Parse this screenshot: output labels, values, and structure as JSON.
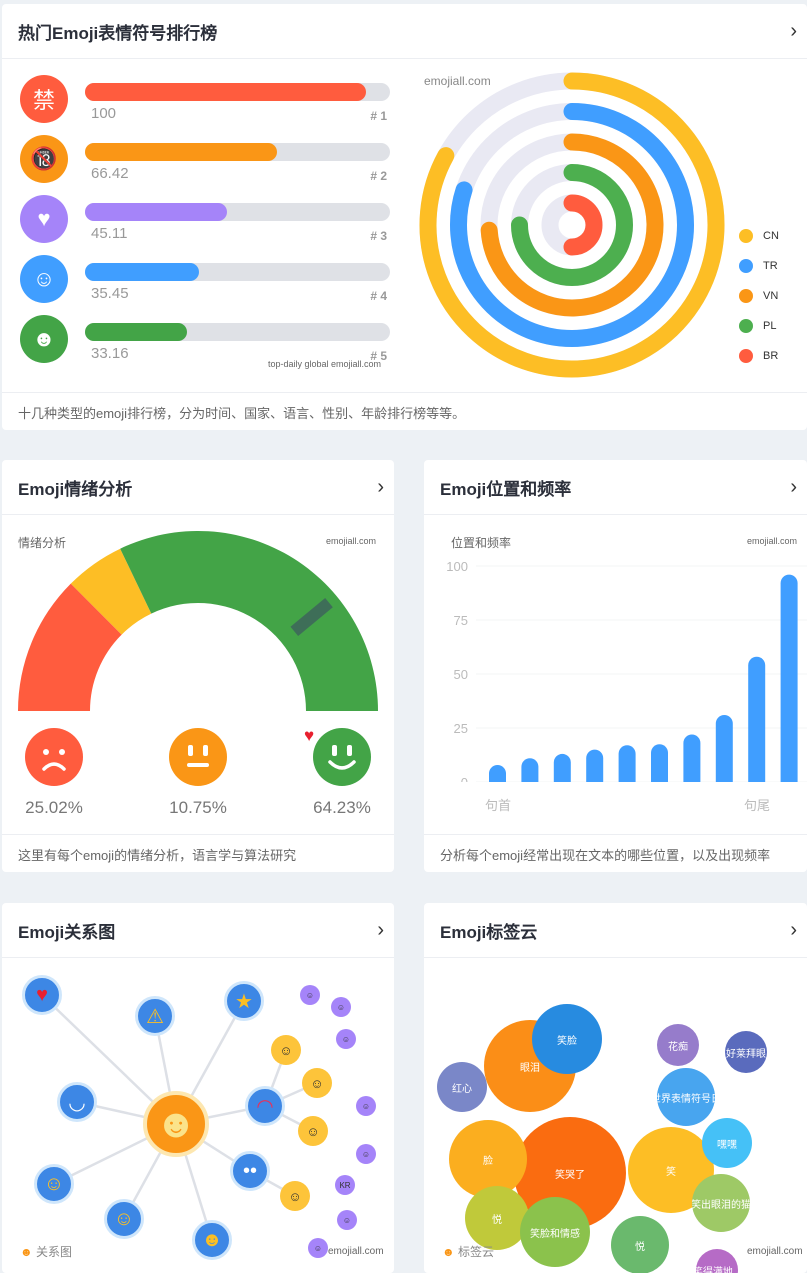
{
  "top": {
    "title": "热门Emoji表情符号排行榜",
    "watermark": "emojiall.com",
    "bar_source": "top-daily global emojiall.com",
    "ranks": [
      {
        "icon": "prohibited-ideograph-icon",
        "glyph": "禁",
        "value": "100",
        "frac": 0.92,
        "rank": "# 1",
        "color": "#ff5c3e",
        "bg": "#ff5c3e"
      },
      {
        "icon": "no-one-under-18-icon",
        "glyph": "🔞",
        "value": "66.42",
        "frac": 0.63,
        "rank": "# 2",
        "color": "#fa9616",
        "bg": "#fa9616"
      },
      {
        "icon": "pink-heart-icon",
        "glyph": "♥",
        "value": "45.11",
        "frac": 0.465,
        "rank": "# 3",
        "color": "#a584f9",
        "bg": "#a584f9"
      },
      {
        "icon": "pleading-face-icon",
        "glyph": "☺",
        "value": "35.45",
        "frac": 0.375,
        "rank": "# 4",
        "color": "#409eff",
        "bg": "#409eff"
      },
      {
        "icon": "melting-face-icon",
        "glyph": "☻",
        "value": "33.16",
        "frac": 0.335,
        "rank": "# 5",
        "color": "#43a447",
        "bg": "#43a447"
      }
    ],
    "radial": [
      {
        "name": "CN",
        "color": "#fdbe25",
        "frac": 0.83
      },
      {
        "name": "TR",
        "color": "#409eff",
        "frac": 0.8
      },
      {
        "name": "VN",
        "color": "#fa9616",
        "frac": 0.74
      },
      {
        "name": "PL",
        "color": "#4daf4f",
        "frac": 0.75
      },
      {
        "name": "BR",
        "color": "#ff5c3e",
        "frac": 0.5
      }
    ],
    "footer": "十几种类型的emoji排行榜，分为时间、国家、语言、性别、年龄排行榜等等。"
  },
  "sentiment": {
    "title": "Emoji情绪分析",
    "label": "情绪分析",
    "watermark": "emojiall.com",
    "segments": [
      {
        "name": "negative",
        "value": "25.02%",
        "pct": 25.02,
        "color": "#ff5c3e"
      },
      {
        "name": "neutral",
        "value": "10.75%",
        "pct": 10.75,
        "color": "#fdbe25"
      },
      {
        "name": "positive",
        "value": "64.23%",
        "pct": 64.23,
        "color": "#43a447"
      }
    ],
    "footer": "这里有每个emoji的情绪分析，语言学与算法研究"
  },
  "position": {
    "title": "Emoji位置和频率",
    "footer": "分析每个emoji经常出现在文本的哪些位置，以及出现频率",
    "chart_data": {
      "type": "bar",
      "title": "位置和频率",
      "watermark": "emojiall.com",
      "ylim": [
        0,
        100
      ],
      "yticks": [
        "0",
        "25",
        "50",
        "75",
        "100"
      ],
      "xlabels": [
        "句首",
        "句尾"
      ],
      "values": [
        5,
        11,
        13,
        15,
        17,
        17.5,
        22,
        31,
        58,
        96
      ],
      "color": "#409eff",
      "grid": true
    }
  },
  "relation": {
    "title": "Emoji关系图",
    "caption": "关系图",
    "watermark": "emojiall.com"
  },
  "tags": {
    "title": "Emoji标签云",
    "caption": "标签云",
    "watermark": "emojiall.com",
    "bubbles": [
      {
        "t": "笑哭了",
        "c": "#fa6c10"
      },
      {
        "t": "眼泪",
        "c": "#fb8e17"
      },
      {
        "t": "笑脸",
        "c": "#278be0"
      },
      {
        "t": "红心",
        "c": "#7a87c8"
      },
      {
        "t": "脸",
        "c": "#fbae1f"
      },
      {
        "t": "笑",
        "c": "#fdbe25"
      },
      {
        "t": "悦",
        "c": "#c0c93a"
      },
      {
        "t": "笑脸和情感",
        "c": "#8bc24c"
      },
      {
        "t": "悦",
        "c": "#6ab96d"
      },
      {
        "t": "花痴",
        "c": "#967ccb"
      },
      {
        "t": "好莱拜眼",
        "c": "#5a6bbd"
      },
      {
        "t": "世界表情符号日",
        "c": "#48a5ef"
      },
      {
        "t": "嘿嘿",
        "c": "#45c1f7"
      },
      {
        "t": "笑出眼泪的猫",
        "c": "#9ec966"
      },
      {
        "t": "笑得满地...",
        "c": "#b66bc6"
      }
    ]
  }
}
